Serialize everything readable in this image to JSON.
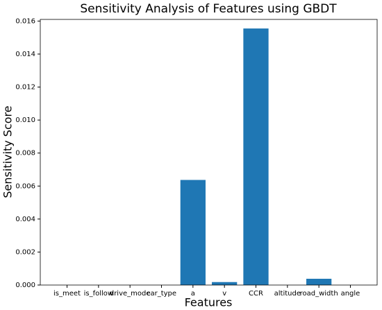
{
  "chart_data": {
    "type": "bar",
    "title": "Sensitivity Analysis of Features using GBDT",
    "x_label": "Features",
    "y_label": "Sensitivity Score",
    "categories": [
      "is_meet",
      "is_follow",
      "drive_mode",
      "car_type",
      "a",
      "v",
      "CCR",
      "altitude",
      "road_width",
      "angle"
    ],
    "values": [
      0,
      0,
      0,
      0,
      0.00637,
      0.00018,
      0.01555,
      0,
      0.00038,
      0
    ],
    "color": "#1f77b4",
    "ylim": [
      0,
      0.0161
    ],
    "yticks": [
      {
        "value": 0,
        "label": "0.000"
      },
      {
        "value": 0.002,
        "label": "0.002"
      },
      {
        "value": 0.004,
        "label": "0.004"
      },
      {
        "value": 0.006,
        "label": "0.006"
      },
      {
        "value": 0.008,
        "label": "0.008"
      },
      {
        "value": 0.01,
        "label": "0.010"
      },
      {
        "value": 0.012,
        "label": "0.012"
      },
      {
        "value": 0.014,
        "label": "0.014"
      },
      {
        "value": 0.016,
        "label": "0.016"
      }
    ],
    "grid": false
  }
}
